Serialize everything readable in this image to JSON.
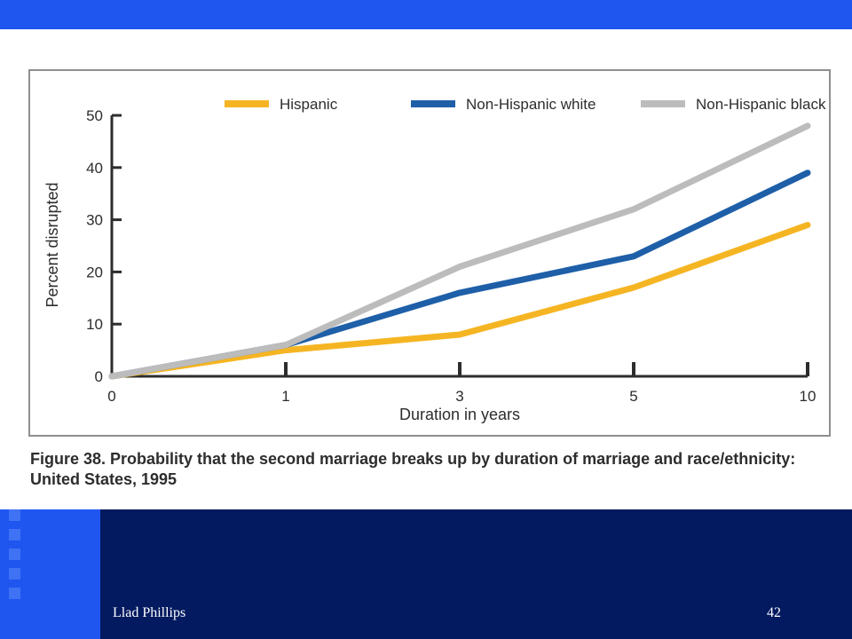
{
  "slide": {
    "caption": "Figure 38. Probability that the second marriage breaks up by duration of marriage and race/ethnicity: United States, 1995",
    "author": "Llad Phillips",
    "page_number": "42",
    "colors": {
      "top_bar": "#1f56f0",
      "footer": "#031a60",
      "footer_panel": "#1f56f0"
    }
  },
  "chart_data": {
    "type": "line",
    "x": [
      "0",
      "1",
      "3",
      "5",
      "10"
    ],
    "series": [
      {
        "name": "Hispanic",
        "color": "#f5b523",
        "values": [
          0,
          5,
          8,
          17,
          29
        ]
      },
      {
        "name": "Non-Hispanic white",
        "color": "#1e5fa8",
        "values": [
          0,
          6,
          16,
          23,
          39
        ]
      },
      {
        "name": "Non-Hispanic black",
        "color": "#bcbcbc",
        "values": [
          0,
          6,
          21,
          32,
          48
        ]
      }
    ],
    "xlabel": "Duration in years",
    "ylabel": "Percent disrupted",
    "ylim": [
      0,
      50
    ],
    "yticks": [
      0,
      10,
      20,
      30,
      40,
      50
    ],
    "legend": "top",
    "grid": false
  }
}
